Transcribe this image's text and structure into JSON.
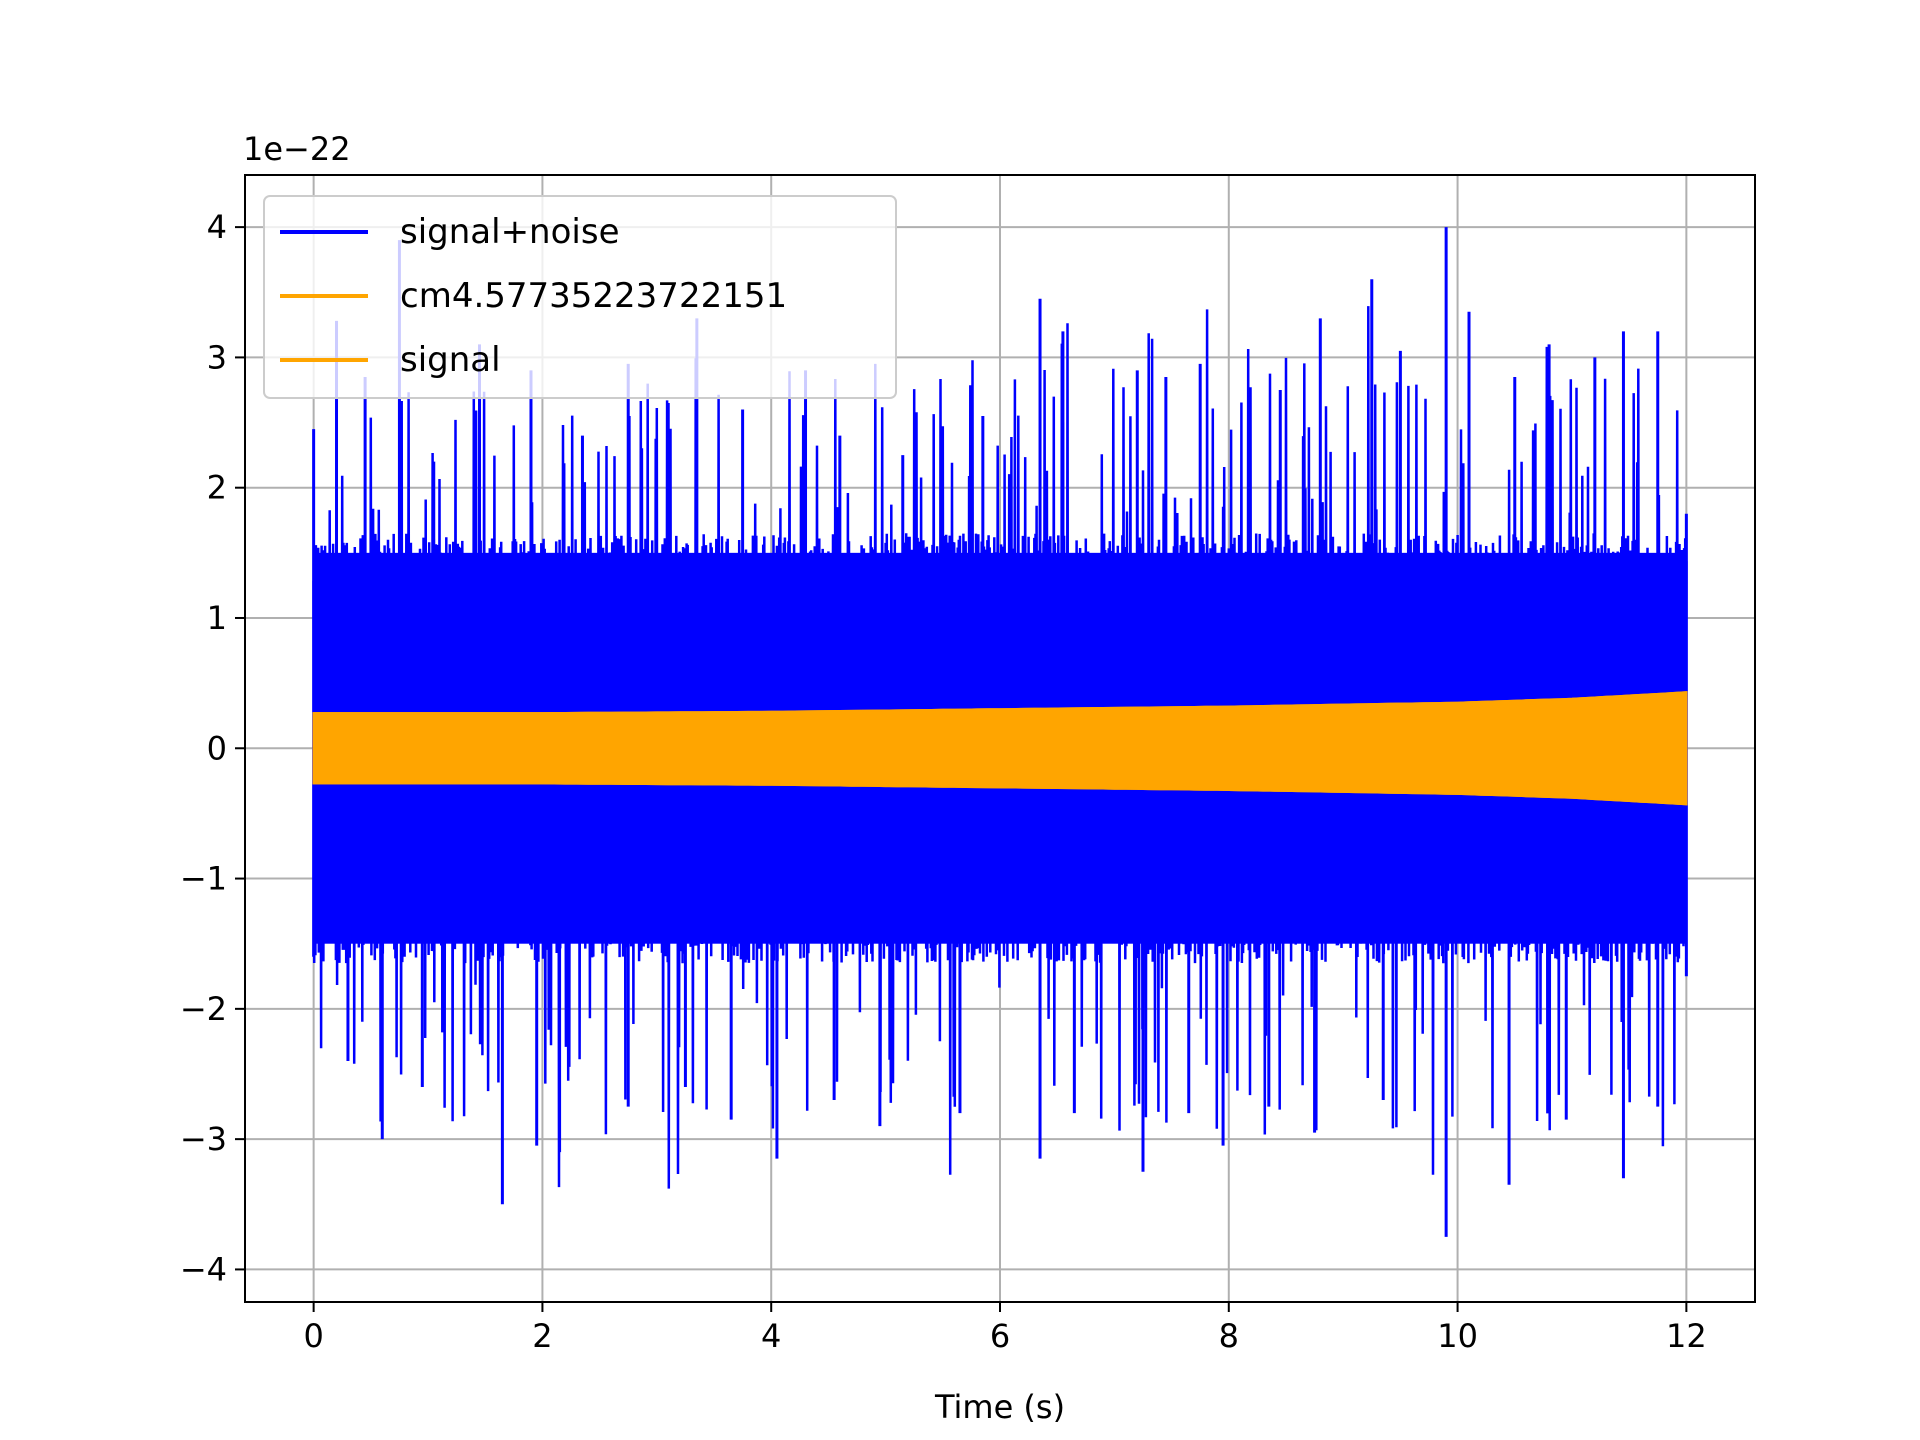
{
  "chart_data": {
    "type": "line",
    "title": "",
    "xlabel": "Time (s)",
    "ylabel": "",
    "y_offset_label": "1e−22",
    "xlim": [
      -0.6,
      12.6
    ],
    "ylim": [
      -4.25,
      4.4
    ],
    "x_ticks": [
      0,
      2,
      4,
      6,
      8,
      10,
      12
    ],
    "x_tick_labels": [
      "0",
      "2",
      "4",
      "6",
      "8",
      "10",
      "12"
    ],
    "y_ticks": [
      -4,
      -3,
      -2,
      -1,
      0,
      1,
      2,
      3,
      4
    ],
    "y_tick_labels": [
      "−4",
      "−3",
      "−2",
      "−1",
      "0",
      "1",
      "2",
      "3",
      "4"
    ],
    "grid": true,
    "legend_position": "upper-left",
    "series": [
      {
        "name": "signal+noise",
        "color": "#0000ff",
        "description_range_x": [
          0,
          12
        ],
        "peaks_upper": [
          [
            0.0,
            2.45
          ],
          [
            0.2,
            3.28
          ],
          [
            0.45,
            2.85
          ],
          [
            0.75,
            3.9
          ],
          [
            1.05,
            2.2
          ],
          [
            1.45,
            3.1
          ],
          [
            1.9,
            2.9
          ],
          [
            2.35,
            2.4
          ],
          [
            2.75,
            2.95
          ],
          [
            3.1,
            2.65
          ],
          [
            3.35,
            3.3
          ],
          [
            3.75,
            2.6
          ],
          [
            4.3,
            2.9
          ],
          [
            4.6,
            2.4
          ],
          [
            5.15,
            2.25
          ],
          [
            5.85,
            2.55
          ],
          [
            6.35,
            3.45
          ],
          [
            6.55,
            3.2
          ],
          [
            7.2,
            2.9
          ],
          [
            7.45,
            2.85
          ],
          [
            7.75,
            2.95
          ],
          [
            8.45,
            2.75
          ],
          [
            8.8,
            3.3
          ],
          [
            9.25,
            3.6
          ],
          [
            9.5,
            3.05
          ],
          [
            9.9,
            4.0
          ],
          [
            10.1,
            3.35
          ],
          [
            10.5,
            2.85
          ],
          [
            10.8,
            3.1
          ],
          [
            11.2,
            3.0
          ],
          [
            11.45,
            3.2
          ],
          [
            11.75,
            3.2
          ],
          [
            12.0,
            1.8
          ]
        ],
        "peaks_lower": [
          [
            0.0,
            -1.6
          ],
          [
            0.3,
            -2.4
          ],
          [
            0.6,
            -3.0
          ],
          [
            0.95,
            -2.6
          ],
          [
            1.65,
            -3.5
          ],
          [
            1.95,
            -3.05
          ],
          [
            2.15,
            -3.1
          ],
          [
            2.75,
            -2.75
          ],
          [
            3.25,
            -2.6
          ],
          [
            3.65,
            -2.85
          ],
          [
            4.05,
            -3.15
          ],
          [
            4.55,
            -2.7
          ],
          [
            4.95,
            -2.9
          ],
          [
            5.65,
            -2.8
          ],
          [
            6.35,
            -3.15
          ],
          [
            6.65,
            -2.8
          ],
          [
            7.25,
            -3.25
          ],
          [
            7.65,
            -2.8
          ],
          [
            7.95,
            -3.05
          ],
          [
            8.35,
            -2.75
          ],
          [
            8.75,
            -2.95
          ],
          [
            9.35,
            -2.7
          ],
          [
            9.9,
            -3.75
          ],
          [
            10.45,
            -3.35
          ],
          [
            10.95,
            -2.85
          ],
          [
            11.45,
            -3.3
          ],
          [
            11.75,
            -2.75
          ],
          [
            12.0,
            -1.75
          ]
        ],
        "core_envelope": 1.5
      },
      {
        "name": "cm4.57735223722151",
        "color": "#ffa500",
        "envelope": [
          [
            0,
            0.27
          ],
          [
            2,
            0.27
          ],
          [
            4,
            0.28
          ],
          [
            6,
            0.3
          ],
          [
            8,
            0.32
          ],
          [
            10,
            0.35
          ],
          [
            11,
            0.38
          ],
          [
            12,
            0.43
          ]
        ]
      },
      {
        "name": "signal",
        "color": "#ffa500",
        "envelope": [
          [
            0,
            0.27
          ],
          [
            2,
            0.27
          ],
          [
            4,
            0.28
          ],
          [
            6,
            0.3
          ],
          [
            8,
            0.32
          ],
          [
            10,
            0.35
          ],
          [
            11,
            0.38
          ],
          [
            12,
            0.43
          ]
        ]
      }
    ]
  }
}
